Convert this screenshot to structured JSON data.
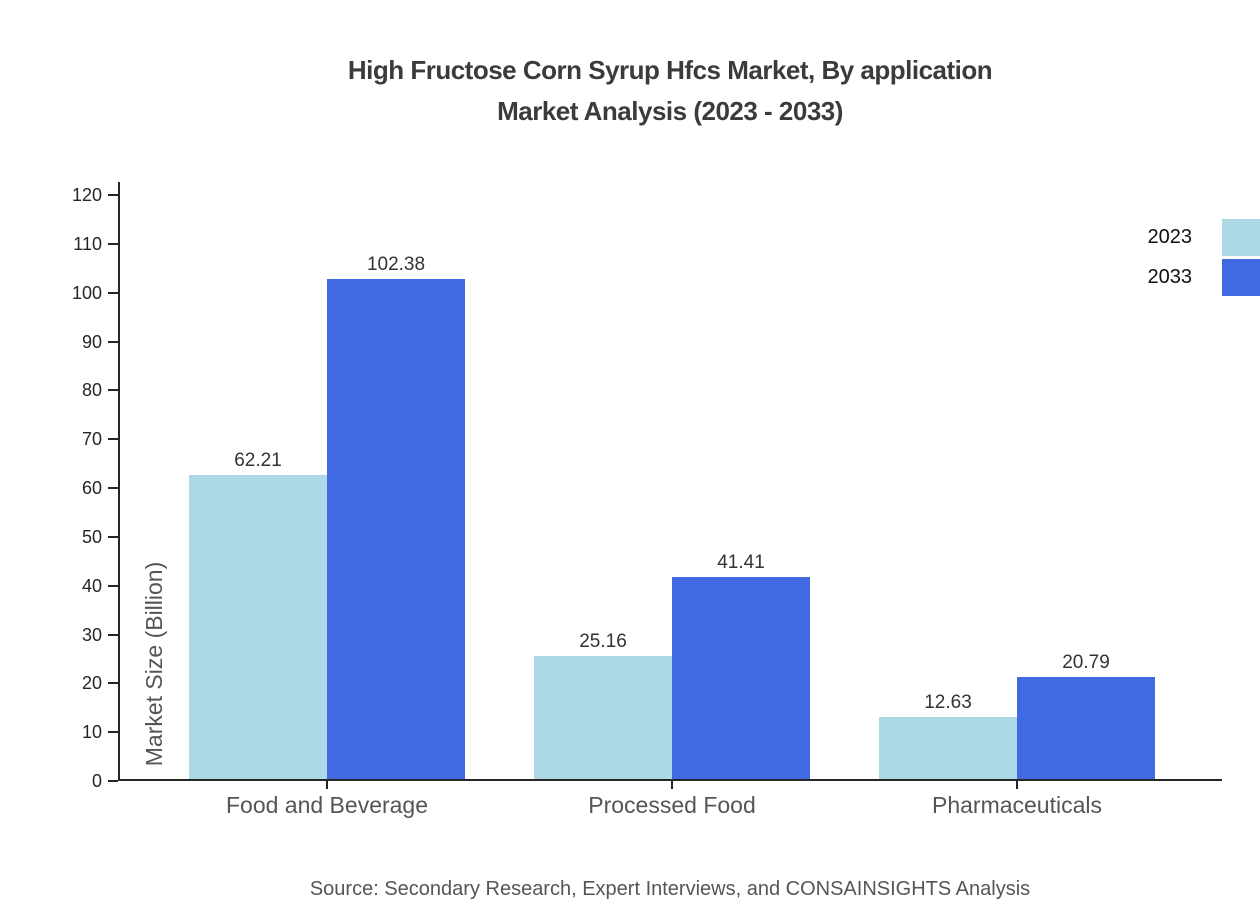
{
  "chart_data": {
    "type": "bar",
    "title_line1": "High Fructose Corn Syrup Hfcs Market, By application",
    "title_line2": "Market Analysis (2023 - 2033)",
    "ylabel": "Market Size (Billion)",
    "xlabel": "",
    "categories": [
      "Food and Beverage",
      "Processed Food",
      "Pharmaceuticals"
    ],
    "series": [
      {
        "name": "2023",
        "color": "#ADD8E6",
        "values": [
          62.21,
          25.16,
          12.63
        ]
      },
      {
        "name": "2033",
        "color": "#4169E1",
        "values": [
          102.38,
          41.41,
          20.79
        ]
      }
    ],
    "ylim": [
      0,
      120
    ],
    "yticks": [
      0,
      10,
      20,
      30,
      40,
      50,
      60,
      70,
      80,
      90,
      100,
      110,
      120
    ],
    "grid": false,
    "legend_position": "top-right",
    "value_labels_decimals": 2,
    "axis_color": "#262626"
  },
  "source_note": "Source: Secondary Research, Expert Interviews, and CONSAINSIGHTS Analysis"
}
